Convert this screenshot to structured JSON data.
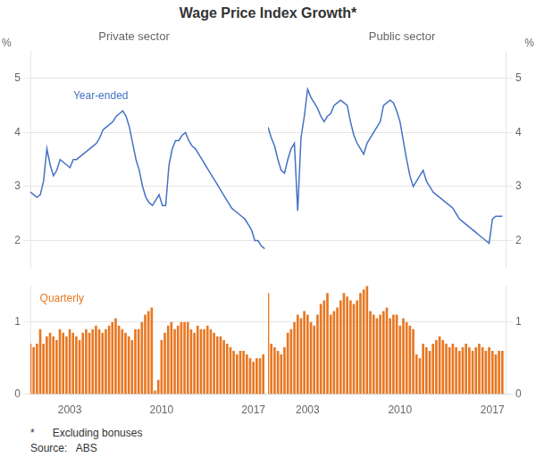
{
  "title": "Wage Price Index Growth*",
  "annotations": [
    "*      Excluding bonuses",
    "Source:   ABS"
  ],
  "chart_data": [
    {
      "type": "line",
      "subtitle": "Private sector",
      "ylabel": "%",
      "annotations": [
        "Year-ended"
      ],
      "x": [
        2000,
        2000.25,
        2000.5,
        2000.75,
        2001,
        2001.25,
        2001.5,
        2001.75,
        2002,
        2002.25,
        2002.5,
        2002.75,
        2003,
        2003.25,
        2003.5,
        2003.75,
        2004,
        2004.25,
        2004.5,
        2004.75,
        2005,
        2005.25,
        2005.5,
        2005.75,
        2006,
        2006.25,
        2006.5,
        2006.75,
        2007,
        2007.25,
        2007.5,
        2007.75,
        2008,
        2008.25,
        2008.5,
        2008.75,
        2009,
        2009.25,
        2009.5,
        2009.75,
        2010,
        2010.25,
        2010.5,
        2010.75,
        2011,
        2011.25,
        2011.5,
        2011.75,
        2012,
        2012.25,
        2012.5,
        2012.75,
        2013,
        2013.25,
        2013.5,
        2013.75,
        2014,
        2014.25,
        2014.5,
        2014.75,
        2015,
        2015.25,
        2015.5,
        2015.75,
        2016,
        2016.25,
        2016.5,
        2016.75,
        2017,
        2017.25,
        2017.5,
        2017.75
      ],
      "values": [
        2.9,
        2.85,
        2.8,
        2.85,
        3.1,
        3.7,
        3.4,
        3.2,
        3.3,
        3.5,
        3.45,
        3.4,
        3.35,
        3.5,
        3.5,
        3.55,
        3.6,
        3.65,
        3.7,
        3.75,
        3.8,
        3.9,
        4.05,
        4.1,
        4.15,
        4.2,
        4.3,
        4.35,
        4.4,
        4.3,
        4.1,
        3.8,
        3.5,
        3.3,
        3.0,
        2.8,
        2.7,
        2.65,
        2.75,
        2.85,
        2.65,
        2.65,
        3.4,
        3.7,
        3.85,
        3.85,
        3.95,
        4.0,
        3.85,
        3.75,
        3.7,
        3.6,
        3.5,
        3.4,
        3.3,
        3.2,
        3.1,
        3.0,
        2.9,
        2.8,
        2.7,
        2.6,
        2.55,
        2.5,
        2.45,
        2.4,
        2.3,
        2.2,
        2.0,
        2.0,
        1.9,
        1.85
      ],
      "color": "#4472C4",
      "xlim": [
        2000,
        2018
      ],
      "ylim": [
        1.5,
        5.5
      ],
      "yticks": [
        2,
        3,
        4,
        5
      ],
      "grid": true,
      "tick_labels": "y"
    },
    {
      "type": "line",
      "subtitle": "Public sector",
      "ylabel": "%",
      "x": [
        2000,
        2000.25,
        2000.5,
        2000.75,
        2001,
        2001.25,
        2001.5,
        2001.75,
        2002,
        2002.25,
        2002.5,
        2002.75,
        2003,
        2003.25,
        2003.5,
        2003.75,
        2004,
        2004.25,
        2004.5,
        2004.75,
        2005,
        2005.25,
        2005.5,
        2005.75,
        2006,
        2006.25,
        2006.5,
        2006.75,
        2007,
        2007.25,
        2007.5,
        2007.75,
        2008,
        2008.25,
        2008.5,
        2008.75,
        2009,
        2009.25,
        2009.5,
        2009.75,
        2010,
        2010.25,
        2010.5,
        2010.75,
        2011,
        2011.25,
        2011.5,
        2011.75,
        2012,
        2012.25,
        2012.5,
        2012.75,
        2013,
        2013.25,
        2013.5,
        2013.75,
        2014,
        2014.25,
        2014.5,
        2014.75,
        2015,
        2015.25,
        2015.5,
        2015.75,
        2016,
        2016.25,
        2016.5,
        2016.75,
        2017,
        2017.25,
        2017.5,
        2017.75
      ],
      "values": [
        4.1,
        3.9,
        3.75,
        3.5,
        3.3,
        3.25,
        3.5,
        3.7,
        3.8,
        2.55,
        3.9,
        4.3,
        4.8,
        4.65,
        4.55,
        4.45,
        4.3,
        4.2,
        4.3,
        4.35,
        4.5,
        4.55,
        4.6,
        4.55,
        4.5,
        4.2,
        3.95,
        3.8,
        3.7,
        3.6,
        3.8,
        3.9,
        4.0,
        4.1,
        4.2,
        4.5,
        4.55,
        4.6,
        4.55,
        4.4,
        4.2,
        3.85,
        3.5,
        3.2,
        3.0,
        3.1,
        3.2,
        3.3,
        3.1,
        3.0,
        2.9,
        2.85,
        2.8,
        2.75,
        2.7,
        2.65,
        2.6,
        2.5,
        2.4,
        2.35,
        2.3,
        2.25,
        2.2,
        2.15,
        2.1,
        2.05,
        2.0,
        1.95,
        2.4,
        2.45,
        2.45,
        2.45
      ],
      "color": "#4472C4",
      "xlim": [
        2000,
        2018
      ],
      "ylim": [
        1.5,
        5.5
      ],
      "yticks": [
        2,
        3,
        4,
        5
      ],
      "grid": true,
      "tick_labels": "y"
    },
    {
      "type": "bar",
      "annotations": [
        "Quarterly"
      ],
      "x": [
        2000,
        2000.25,
        2000.5,
        2000.75,
        2001,
        2001.25,
        2001.5,
        2001.75,
        2002,
        2002.25,
        2002.5,
        2002.75,
        2003,
        2003.25,
        2003.5,
        2003.75,
        2004,
        2004.25,
        2004.5,
        2004.75,
        2005,
        2005.25,
        2005.5,
        2005.75,
        2006,
        2006.25,
        2006.5,
        2006.75,
        2007,
        2007.25,
        2007.5,
        2007.75,
        2008,
        2008.25,
        2008.5,
        2008.75,
        2009,
        2009.25,
        2009.5,
        2009.75,
        2010,
        2010.25,
        2010.5,
        2010.75,
        2011,
        2011.25,
        2011.5,
        2011.75,
        2012,
        2012.25,
        2012.5,
        2012.75,
        2013,
        2013.25,
        2013.5,
        2013.75,
        2014,
        2014.25,
        2014.5,
        2014.75,
        2015,
        2015.25,
        2015.5,
        2015.75,
        2016,
        2016.25,
        2016.5,
        2016.75,
        2017,
        2017.25,
        2017.5,
        2017.75
      ],
      "values": [
        0.7,
        0.65,
        0.7,
        0.9,
        0.7,
        0.8,
        0.85,
        0.8,
        0.75,
        0.9,
        0.85,
        0.8,
        0.9,
        0.85,
        0.8,
        0.75,
        0.85,
        0.9,
        0.85,
        0.9,
        0.95,
        0.9,
        0.85,
        0.9,
        0.95,
        1.0,
        1.05,
        0.95,
        0.9,
        0.85,
        0.8,
        0.75,
        0.9,
        0.9,
        1.0,
        1.1,
        1.15,
        1.2,
        0.05,
        0.2,
        0.75,
        0.85,
        0.95,
        1.0,
        0.9,
        0.95,
        1.0,
        1.0,
        1.0,
        0.9,
        0.85,
        0.95,
        0.9,
        0.9,
        0.95,
        0.9,
        0.85,
        0.8,
        0.8,
        0.75,
        0.7,
        0.65,
        0.6,
        0.55,
        0.6,
        0.6,
        0.55,
        0.5,
        0.45,
        0.5,
        0.5,
        0.55
      ],
      "color": "#E87722",
      "xlim": [
        2000,
        2018
      ],
      "xticks": [
        2003,
        2010,
        2017
      ],
      "ylim": [
        0,
        1.5
      ],
      "yticks": [
        0,
        1
      ],
      "grid": true
    },
    {
      "type": "bar",
      "x": [
        2000,
        2000.25,
        2000.5,
        2000.75,
        2001,
        2001.25,
        2001.5,
        2001.75,
        2002,
        2002.25,
        2002.5,
        2002.75,
        2003,
        2003.25,
        2003.5,
        2003.75,
        2004,
        2004.25,
        2004.5,
        2004.75,
        2005,
        2005.25,
        2005.5,
        2005.75,
        2006,
        2006.25,
        2006.5,
        2006.75,
        2007,
        2007.25,
        2007.5,
        2007.75,
        2008,
        2008.25,
        2008.5,
        2008.75,
        2009,
        2009.25,
        2009.5,
        2009.75,
        2010,
        2010.25,
        2010.5,
        2010.75,
        2011,
        2011.25,
        2011.5,
        2011.75,
        2012,
        2012.25,
        2012.5,
        2012.75,
        2013,
        2013.25,
        2013.5,
        2013.75,
        2014,
        2014.25,
        2014.5,
        2014.75,
        2015,
        2015.25,
        2015.5,
        2015.75,
        2016,
        2016.25,
        2016.5,
        2016.75,
        2017,
        2017.25,
        2017.5,
        2017.75
      ],
      "values": [
        1.4,
        0.7,
        0.65,
        0.6,
        0.55,
        0.65,
        0.85,
        0.9,
        1.0,
        1.1,
        1.05,
        1.15,
        1.1,
        1.0,
        0.95,
        1.1,
        1.25,
        1.3,
        1.4,
        1.1,
        1.15,
        1.2,
        1.3,
        1.4,
        1.35,
        1.3,
        1.25,
        1.3,
        1.4,
        1.45,
        1.5,
        1.15,
        1.1,
        1.05,
        1.1,
        1.15,
        1.2,
        1.05,
        1.1,
        1.1,
        0.95,
        1.05,
        1.0,
        0.95,
        0.9,
        0.55,
        0.5,
        0.7,
        0.65,
        0.6,
        0.7,
        0.75,
        0.8,
        0.75,
        0.7,
        0.65,
        0.7,
        0.65,
        0.6,
        0.65,
        0.7,
        0.65,
        0.6,
        0.65,
        0.7,
        0.65,
        0.6,
        0.65,
        0.6,
        0.55,
        0.6,
        0.6
      ],
      "color": "#E87722",
      "xlim": [
        2000,
        2018
      ],
      "xticks": [
        2003,
        2010,
        2017
      ],
      "ylim": [
        0,
        1.5
      ],
      "yticks": [
        0,
        1
      ],
      "grid": true
    }
  ]
}
